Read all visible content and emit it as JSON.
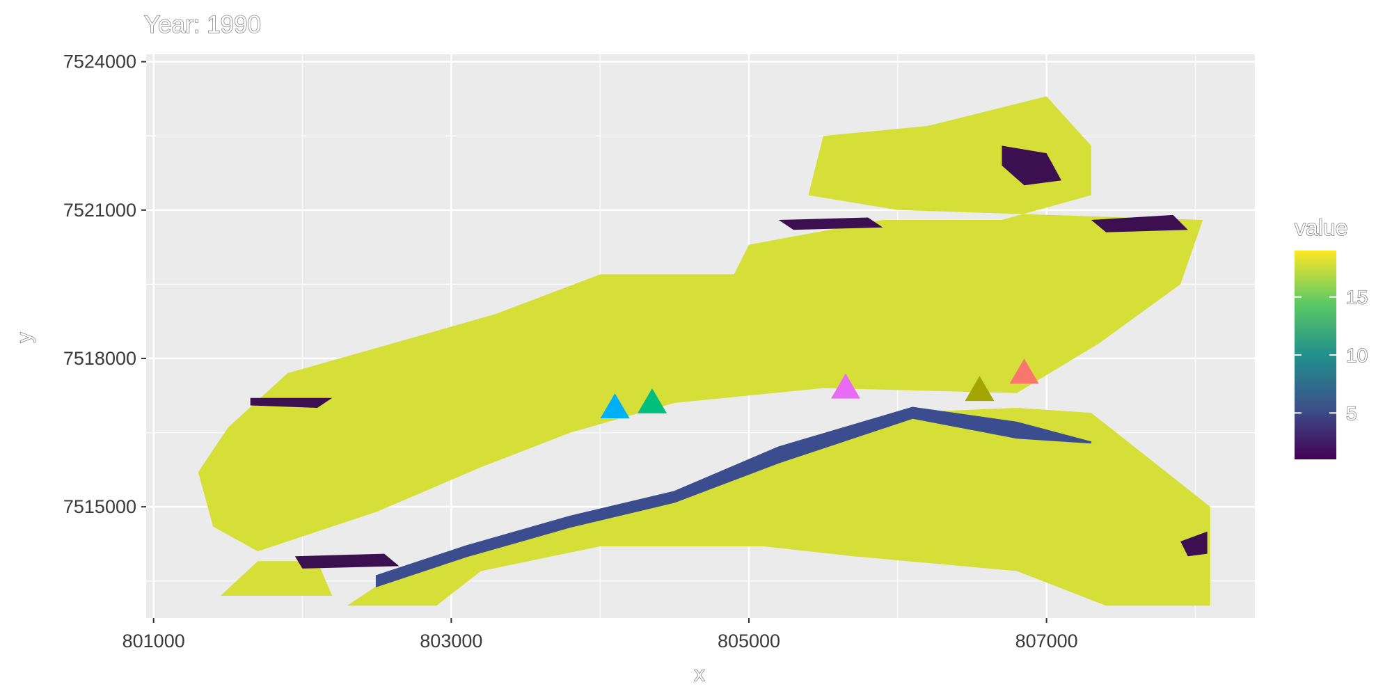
{
  "title": "Year: 1990",
  "chart_data": {
    "type": "raster-map",
    "xlabel": "x",
    "ylabel": "y",
    "xlim": [
      800950,
      808400
    ],
    "ylim": [
      7512750,
      7524150
    ],
    "x_ticks": [
      801000,
      803000,
      805000,
      807000
    ],
    "y_ticks": [
      7515000,
      7518000,
      7521000,
      7524000
    ],
    "x_tick_labels": [
      "801000",
      "803000",
      "805000",
      "807000"
    ],
    "y_tick_labels": [
      "7515000",
      "7518000",
      "7521000",
      "7524000"
    ],
    "grid": true,
    "legend": {
      "title": "value",
      "placement": "right",
      "min": 1,
      "max": 19,
      "ticks": [
        5,
        10,
        15
      ],
      "tick_labels": [
        "5",
        "10",
        "15"
      ],
      "palette": "viridis"
    },
    "regions": [
      {
        "value": 18,
        "color": "#d5df38",
        "role": "main-land",
        "points": [
          [
            801300,
            7515700
          ],
          [
            801500,
            7516600
          ],
          [
            801900,
            7517700
          ],
          [
            802600,
            7518300
          ],
          [
            803300,
            7518900
          ],
          [
            804000,
            7519700
          ],
          [
            804900,
            7519700
          ],
          [
            805000,
            7520300
          ],
          [
            805900,
            7520800
          ],
          [
            806700,
            7520800
          ],
          [
            807300,
            7521300
          ],
          [
            807300,
            7522300
          ],
          [
            807000,
            7523300
          ],
          [
            806200,
            7522700
          ],
          [
            805500,
            7522500
          ],
          [
            805400,
            7521300
          ],
          [
            806000,
            7521000
          ],
          [
            808050,
            7520800
          ],
          [
            807900,
            7519500
          ],
          [
            807350,
            7518300
          ],
          [
            806800,
            7517300
          ],
          [
            805500,
            7517400
          ],
          [
            804500,
            7517100
          ],
          [
            803800,
            7516500
          ],
          [
            803200,
            7515800
          ],
          [
            802500,
            7514900
          ],
          [
            801700,
            7514100
          ],
          [
            801400,
            7514600
          ]
        ]
      },
      {
        "value": 18,
        "color": "#d5df38",
        "role": "south-land",
        "points": [
          [
            802300,
            7513000
          ],
          [
            802600,
            7513600
          ],
          [
            803400,
            7514400
          ],
          [
            804500,
            7515300
          ],
          [
            805300,
            7516100
          ],
          [
            806000,
            7516900
          ],
          [
            806800,
            7517000
          ],
          [
            807300,
            7516900
          ],
          [
            808100,
            7515000
          ],
          [
            808100,
            7513000
          ],
          [
            807400,
            7513000
          ],
          [
            806800,
            7513700
          ],
          [
            805700,
            7514000
          ],
          [
            805100,
            7514200
          ],
          [
            804000,
            7514200
          ],
          [
            803200,
            7513700
          ],
          [
            802900,
            7513000
          ]
        ]
      },
      {
        "value": 18,
        "color": "#d5df38",
        "role": "south-islet",
        "points": [
          [
            801450,
            7513200
          ],
          [
            801700,
            7513900
          ],
          [
            802100,
            7513900
          ],
          [
            802200,
            7513200
          ]
        ]
      },
      {
        "value": 3,
        "color": "#3b4d8f",
        "role": "river-channel",
        "points": [
          [
            802500,
            7513400
          ],
          [
            803100,
            7514000
          ],
          [
            803800,
            7514600
          ],
          [
            804500,
            7515100
          ],
          [
            805200,
            7515900
          ],
          [
            806100,
            7516800
          ],
          [
            806800,
            7516400
          ],
          [
            807300,
            7516300
          ],
          [
            806800,
            7516700
          ],
          [
            806100,
            7517000
          ],
          [
            805200,
            7516200
          ],
          [
            804500,
            7515300
          ],
          [
            803800,
            7514800
          ],
          [
            803100,
            7514200
          ],
          [
            802500,
            7513600
          ]
        ]
      },
      {
        "value": 1,
        "color": "#3b0f50",
        "role": "edge-patch",
        "points": [
          [
            801650,
            7517200
          ],
          [
            802200,
            7517200
          ],
          [
            802100,
            7517000
          ],
          [
            801650,
            7517050
          ]
        ]
      },
      {
        "value": 1,
        "color": "#3b0f50",
        "role": "edge-patch",
        "points": [
          [
            806700,
            7522300
          ],
          [
            807000,
            7522150
          ],
          [
            807100,
            7521600
          ],
          [
            806850,
            7521500
          ],
          [
            806700,
            7521900
          ]
        ]
      },
      {
        "value": 1,
        "color": "#3b0f50",
        "role": "edge-patch",
        "points": [
          [
            807300,
            7520800
          ],
          [
            807850,
            7520900
          ],
          [
            807950,
            7520600
          ],
          [
            807400,
            7520550
          ]
        ]
      },
      {
        "value": 1,
        "color": "#3b0f50",
        "role": "edge-patch",
        "points": [
          [
            801950,
            7514000
          ],
          [
            802550,
            7514050
          ],
          [
            802650,
            7513800
          ],
          [
            802000,
            7513750
          ]
        ]
      },
      {
        "value": 1,
        "color": "#3b0f50",
        "role": "edge-patch",
        "points": [
          [
            807900,
            7514300
          ],
          [
            808080,
            7514500
          ],
          [
            808080,
            7514050
          ],
          [
            807950,
            7514000
          ]
        ]
      },
      {
        "value": 1,
        "color": "#3b0f50",
        "role": "edge-patch",
        "points": [
          [
            805200,
            7520800
          ],
          [
            805800,
            7520850
          ],
          [
            805900,
            7520650
          ],
          [
            805300,
            7520600
          ]
        ]
      }
    ],
    "sites": [
      {
        "x": 804100,
        "y": 7517000,
        "color": "#00b0f6"
      },
      {
        "x": 804350,
        "y": 7517100,
        "color": "#00bf7d"
      },
      {
        "x": 805650,
        "y": 7517400,
        "color": "#e76bf3"
      },
      {
        "x": 806550,
        "y": 7517350,
        "color": "#a3a500"
      },
      {
        "x": 806850,
        "y": 7517700,
        "color": "#f8766d"
      }
    ]
  }
}
